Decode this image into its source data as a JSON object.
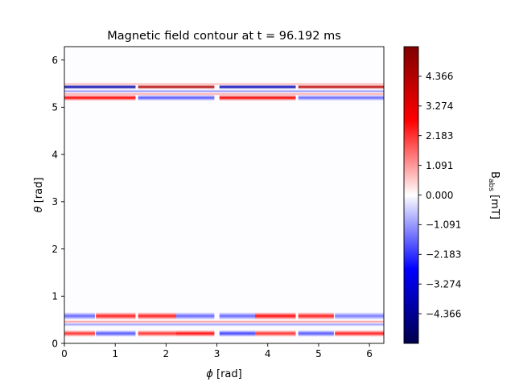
{
  "chart_data": {
    "type": "heatmap",
    "title": "Magnetic field contour at t = 96.192 ms",
    "xlabel_symbol": "ϕ",
    "xlabel_unit": " [rad]",
    "ylabel_symbol": "θ",
    "ylabel_unit": " [rad]",
    "xlim": [
      0,
      6.283
    ],
    "ylim": [
      0,
      6.283
    ],
    "x_ticks": [
      0,
      1,
      2,
      3,
      4,
      5,
      6
    ],
    "y_ticks": [
      0,
      1,
      2,
      3,
      4,
      5,
      6
    ],
    "colorbar": {
      "label_main": "B",
      "label_sub": "abs",
      "label_unit": " [mT]",
      "range": [
        -5.4575,
        5.4575
      ],
      "ticks": [
        4.366,
        3.274,
        2.183,
        1.091,
        0.0,
        -1.091,
        -2.183,
        -3.274,
        -4.366
      ],
      "tick_labels": [
        "4.366",
        "3.274",
        "2.183",
        "1.091",
        "0.000",
        "−1.091",
        "−2.183",
        "−3.274",
        "−4.366"
      ],
      "colormap": "seismic",
      "colors": {
        "negative_end": "#00004c",
        "blue": "#0000ff",
        "zero": "#ffffff",
        "red": "#ff0000",
        "positive_end": "#800000"
      }
    },
    "bands": [
      {
        "theta": 0.21,
        "width": 0.045,
        "segments": [
          [
            0,
            0.6,
            2.2
          ],
          [
            0.62,
            1.4,
            -1.8
          ],
          [
            1.45,
            2.2,
            2.2
          ],
          [
            2.2,
            2.95,
            2.6
          ],
          [
            3.05,
            3.75,
            -2.0
          ],
          [
            3.75,
            4.55,
            2.2
          ],
          [
            4.6,
            5.3,
            -1.8
          ],
          [
            5.32,
            6.283,
            2.4
          ]
        ]
      },
      {
        "theta": 0.4,
        "width": 0.025,
        "segments": [
          [
            0,
            6.283,
            -1.0
          ]
        ]
      },
      {
        "theta": 0.46,
        "width": 0.02,
        "segments": [
          [
            0,
            6.283,
            1.2
          ]
        ]
      },
      {
        "theta": 0.58,
        "width": 0.05,
        "segments": [
          [
            0,
            0.6,
            -1.6
          ],
          [
            0.62,
            1.4,
            2.4
          ],
          [
            1.45,
            2.2,
            2.4
          ],
          [
            2.2,
            2.95,
            -1.6
          ],
          [
            3.05,
            3.75,
            -1.6
          ],
          [
            3.75,
            4.55,
            2.6
          ],
          [
            4.6,
            5.3,
            2.4
          ],
          [
            5.32,
            6.283,
            -1.4
          ]
        ]
      },
      {
        "theta": 5.2,
        "width": 0.04,
        "segments": [
          [
            0,
            1.4,
            2.8
          ],
          [
            1.45,
            2.95,
            -1.8
          ],
          [
            3.05,
            4.55,
            3.0
          ],
          [
            4.6,
            6.283,
            -1.6
          ]
        ]
      },
      {
        "theta": 5.28,
        "width": 0.02,
        "segments": [
          [
            0,
            6.283,
            1.0
          ]
        ]
      },
      {
        "theta": 5.34,
        "width": 0.02,
        "segments": [
          [
            0,
            6.283,
            -1.2
          ]
        ]
      },
      {
        "theta": 5.43,
        "width": 0.03,
        "segments": [
          [
            0,
            1.4,
            -4.0
          ],
          [
            1.45,
            2.95,
            4.4
          ],
          [
            3.05,
            4.55,
            -3.8
          ],
          [
            4.6,
            6.283,
            4.2
          ]
        ]
      },
      {
        "theta": 5.49,
        "width": 0.02,
        "segments": [
          [
            0,
            6.283,
            0.8
          ]
        ]
      }
    ]
  }
}
